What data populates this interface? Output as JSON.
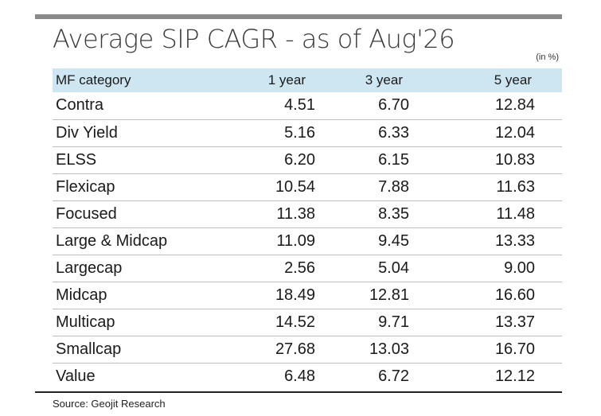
{
  "chart_data": {
    "type": "table",
    "title": "Average SIP CAGR - as of Aug'26",
    "unit_note": "(in %)",
    "columns": [
      "MF category",
      "1 year",
      "3 year",
      "5 year"
    ],
    "rows": [
      {
        "category": "Contra",
        "y1": "4.51",
        "y3": "6.70",
        "y5": "12.84"
      },
      {
        "category": "Div Yield",
        "y1": "5.16",
        "y3": "6.33",
        "y5": "12.04"
      },
      {
        "category": "ELSS",
        "y1": "6.20",
        "y3": "6.15",
        "y5": "10.83"
      },
      {
        "category": "Flexicap",
        "y1": "10.54",
        "y3": "7.88",
        "y5": "11.63"
      },
      {
        "category": "Focused",
        "y1": "11.38",
        "y3": "8.35",
        "y5": "11.48"
      },
      {
        "category": "Large & Midcap",
        "y1": "11.09",
        "y3": "9.45",
        "y5": "13.33"
      },
      {
        "category": "Largecap",
        "y1": "2.56",
        "y3": "5.04",
        "y5": "9.00"
      },
      {
        "category": "Midcap",
        "y1": "18.49",
        "y3": "12.81",
        "y5": "16.60"
      },
      {
        "category": "Multicap",
        "y1": "14.52",
        "y3": "9.71",
        "y5": "13.37"
      },
      {
        "category": "Smallcap",
        "y1": "27.68",
        "y3": "13.03",
        "y5": "16.70"
      },
      {
        "category": "Value",
        "y1": "6.48",
        "y3": "6.72",
        "y5": "12.12"
      }
    ],
    "source": "Source: Geojit Research",
    "colors": {
      "header_background": "#cde6f1",
      "top_rule": "#8a8a8a",
      "row_divider": "#bdbdbd"
    }
  }
}
